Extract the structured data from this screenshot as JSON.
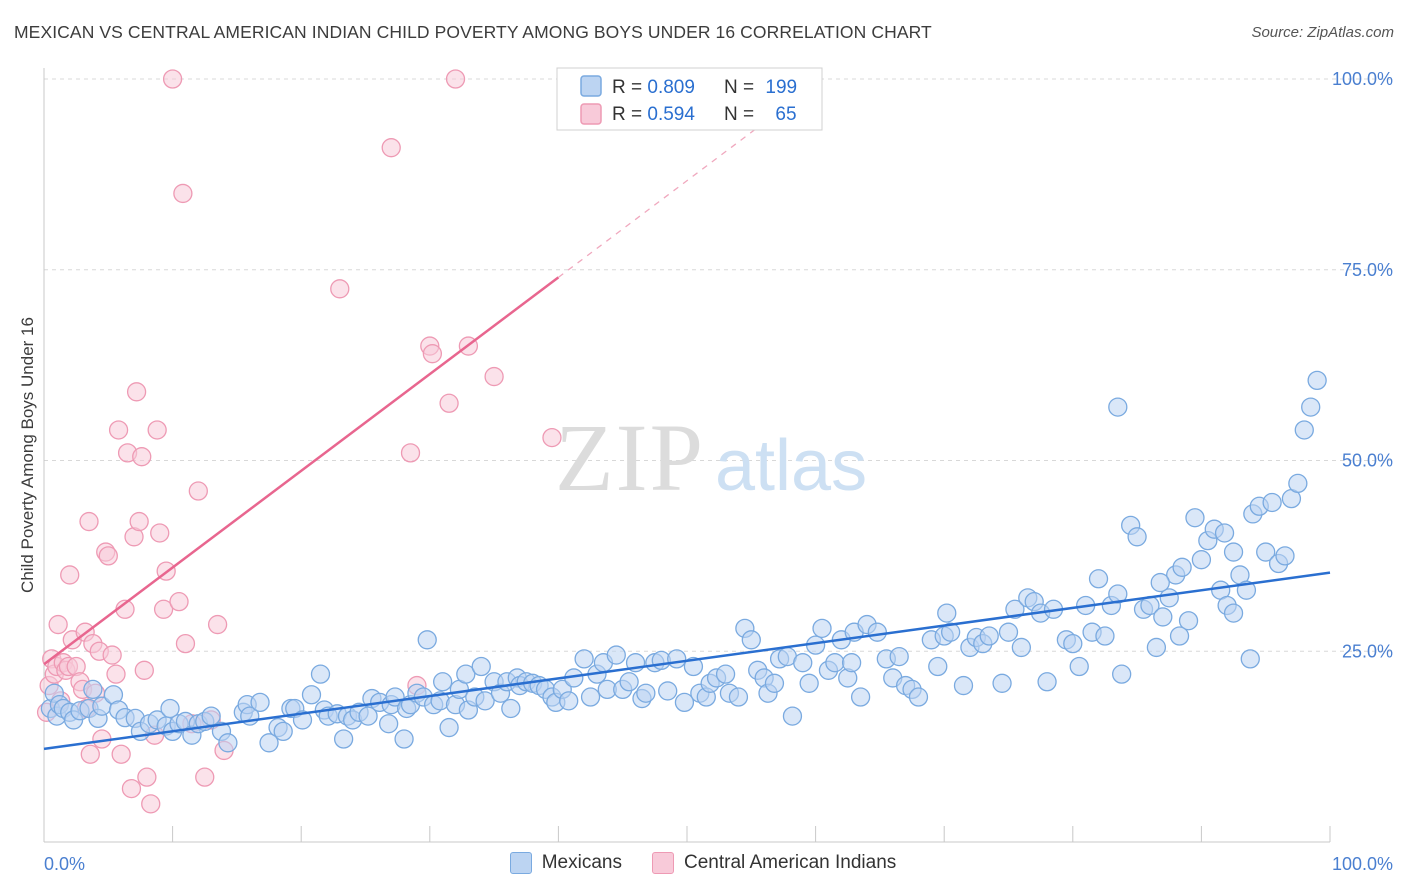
{
  "title": "MEXICAN VS CENTRAL AMERICAN INDIAN CHILD POVERTY AMONG BOYS UNDER 16 CORRELATION CHART",
  "source": "Source: ZipAtlas.com",
  "watermark": {
    "zip": "ZIP",
    "atlas": "atlas"
  },
  "colors": {
    "blue": "#7aaae0",
    "blue_fill": "#bcd4f2",
    "blue_line": "#2a6fd0",
    "pink": "#ee9ab4",
    "pink_fill": "#f8cad9",
    "pink_line": "#e8668f",
    "axis_text": "#4a7fd0",
    "grid": "#d8d8d8"
  },
  "legend": {
    "rows": [
      {
        "r_label": "R = ",
        "r_value": "0.809",
        "n_label": "N = ",
        "n_value": "199",
        "series": "blue"
      },
      {
        "r_label": "R = ",
        "r_value": "0.594",
        "n_label": "N = ",
        "n_value": "65",
        "series": "pink"
      }
    ]
  },
  "bottom_legend": [
    "Mexicans",
    "Central American Indians"
  ],
  "chart_data": {
    "type": "scatter",
    "title": "MEXICAN VS CENTRAL AMERICAN INDIAN CHILD POVERTY AMONG BOYS UNDER 16 CORRELATION CHART",
    "xlabel": "",
    "ylabel": "Child Poverty Among Boys Under 16",
    "xlim": [
      0,
      100
    ],
    "ylim": [
      0,
      100
    ],
    "x_tick_labels": [
      "0.0%",
      "100.0%"
    ],
    "y_tick_labels": [
      "25.0%",
      "50.0%",
      "75.0%",
      "100.0%"
    ],
    "y_ticks": [
      25,
      50,
      75,
      100
    ],
    "grid": true,
    "legend_position": "top-center",
    "series": [
      {
        "name": "Mexicans",
        "color": "#7aaae0",
        "r": 0.809,
        "n": 199,
        "trend": {
          "x": [
            0,
            100
          ],
          "y": [
            12.2,
            35.3
          ]
        },
        "points": [
          [
            0.5,
            17.5
          ],
          [
            0.8,
            19.5
          ],
          [
            1,
            16.5
          ],
          [
            1.2,
            18
          ],
          [
            1.5,
            17.5
          ],
          [
            2,
            17
          ],
          [
            2.3,
            16
          ],
          [
            2.8,
            17.2
          ],
          [
            3.5,
            17.5
          ],
          [
            3.8,
            20
          ],
          [
            4.2,
            16.2
          ],
          [
            4.5,
            17.8
          ],
          [
            5.4,
            19.3
          ],
          [
            5.8,
            17.3
          ],
          [
            6.3,
            16.3
          ],
          [
            7.1,
            16.2
          ],
          [
            7.5,
            14.5
          ],
          [
            8.2,
            15.5
          ],
          [
            8.8,
            16
          ],
          [
            9.5,
            15.2
          ],
          [
            9.8,
            17.5
          ],
          [
            10,
            14.5
          ],
          [
            10.5,
            15.5
          ],
          [
            11,
            15.8
          ],
          [
            11.5,
            14
          ],
          [
            12,
            15.5
          ],
          [
            12.5,
            15.8
          ],
          [
            13,
            16.5
          ],
          [
            13.8,
            14.5
          ],
          [
            14.3,
            13
          ],
          [
            15.5,
            17
          ],
          [
            15.8,
            18
          ],
          [
            16,
            16.5
          ],
          [
            16.8,
            18.3
          ],
          [
            17.5,
            13
          ],
          [
            18.2,
            15
          ],
          [
            18.6,
            14.5
          ],
          [
            19.2,
            17.5
          ],
          [
            19.5,
            17.5
          ],
          [
            20.1,
            16
          ],
          [
            20.8,
            19.3
          ],
          [
            21.5,
            22
          ],
          [
            21.8,
            17.3
          ],
          [
            22.1,
            16.5
          ],
          [
            22.8,
            16.8
          ],
          [
            23.3,
            13.5
          ],
          [
            23.6,
            16.5
          ],
          [
            24,
            16
          ],
          [
            24.5,
            17
          ],
          [
            25.2,
            16.5
          ],
          [
            25.5,
            18.8
          ],
          [
            26.1,
            18.3
          ],
          [
            26.8,
            15.5
          ],
          [
            27,
            18
          ],
          [
            27.3,
            19
          ],
          [
            28,
            13.5
          ],
          [
            28.2,
            17.5
          ],
          [
            28.5,
            18
          ],
          [
            29,
            19.5
          ],
          [
            29.5,
            19
          ],
          [
            29.8,
            26.5
          ],
          [
            30.3,
            18
          ],
          [
            30.8,
            18.5
          ],
          [
            31,
            21
          ],
          [
            31.5,
            15
          ],
          [
            32,
            18
          ],
          [
            32.3,
            20
          ],
          [
            32.8,
            22
          ],
          [
            33,
            17.3
          ],
          [
            33.5,
            19
          ],
          [
            34,
            23
          ],
          [
            34.3,
            18.5
          ],
          [
            35,
            21
          ],
          [
            35.5,
            19.5
          ],
          [
            36,
            21
          ],
          [
            36.3,
            17.5
          ],
          [
            36.8,
            21.5
          ],
          [
            37,
            20.5
          ],
          [
            37.5,
            21
          ],
          [
            38,
            20.8
          ],
          [
            38.5,
            20.5
          ],
          [
            39,
            20
          ],
          [
            39.5,
            19
          ],
          [
            39.8,
            18.3
          ],
          [
            40.3,
            20
          ],
          [
            40.8,
            18.5
          ],
          [
            41.2,
            21.5
          ],
          [
            42,
            24
          ],
          [
            42.5,
            19
          ],
          [
            43,
            22
          ],
          [
            43.5,
            23.5
          ],
          [
            43.8,
            20
          ],
          [
            44.5,
            24.5
          ],
          [
            45,
            20
          ],
          [
            45.5,
            21
          ],
          [
            46,
            23.5
          ],
          [
            46.5,
            18.8
          ],
          [
            46.8,
            19.5
          ],
          [
            47.5,
            23.5
          ],
          [
            48,
            23.8
          ],
          [
            48.5,
            19.8
          ],
          [
            49.2,
            24
          ],
          [
            49.8,
            18.3
          ],
          [
            50.5,
            23
          ],
          [
            51,
            19.5
          ],
          [
            51.5,
            19
          ],
          [
            51.8,
            20.8
          ],
          [
            52.3,
            21.5
          ],
          [
            53,
            22
          ],
          [
            53.3,
            19.5
          ],
          [
            54,
            19
          ],
          [
            54.5,
            28
          ],
          [
            55,
            26.5
          ],
          [
            55.5,
            22.5
          ],
          [
            56,
            21.5
          ],
          [
            56.3,
            19.5
          ],
          [
            56.8,
            20.8
          ],
          [
            57.2,
            24
          ],
          [
            57.8,
            24.3
          ],
          [
            58.2,
            16.5
          ],
          [
            59,
            23.5
          ],
          [
            59.5,
            20.8
          ],
          [
            60,
            25.8
          ],
          [
            60.5,
            28
          ],
          [
            61,
            22.5
          ],
          [
            61.5,
            23.5
          ],
          [
            62,
            26.5
          ],
          [
            62.5,
            21.5
          ],
          [
            62.8,
            23.5
          ],
          [
            63,
            27.5
          ],
          [
            63.5,
            19
          ],
          [
            64,
            28.5
          ],
          [
            64.8,
            27.5
          ],
          [
            65.5,
            24
          ],
          [
            66,
            21.5
          ],
          [
            66.5,
            24.3
          ],
          [
            67,
            20.5
          ],
          [
            67.5,
            20
          ],
          [
            68,
            19
          ],
          [
            69,
            26.5
          ],
          [
            69.5,
            23
          ],
          [
            70,
            27
          ],
          [
            70.2,
            30
          ],
          [
            70.5,
            27.5
          ],
          [
            71.5,
            20.5
          ],
          [
            72,
            25.5
          ],
          [
            72.5,
            26.8
          ],
          [
            73,
            26
          ],
          [
            73.5,
            27
          ],
          [
            74.5,
            20.8
          ],
          [
            75,
            27.5
          ],
          [
            75.5,
            30.5
          ],
          [
            76,
            25.5
          ],
          [
            76.5,
            32
          ],
          [
            77,
            31.5
          ],
          [
            77.5,
            30
          ],
          [
            78,
            21
          ],
          [
            78.5,
            30.5
          ],
          [
            79.5,
            26.5
          ],
          [
            80,
            26
          ],
          [
            80.5,
            23
          ],
          [
            81,
            31
          ],
          [
            81.5,
            27.5
          ],
          [
            82,
            34.5
          ],
          [
            82.5,
            27
          ],
          [
            83,
            31
          ],
          [
            83.5,
            32.5
          ],
          [
            83.8,
            22
          ],
          [
            84.5,
            41.5
          ],
          [
            85,
            40
          ],
          [
            85.5,
            30.5
          ],
          [
            86,
            31
          ],
          [
            86.5,
            25.5
          ],
          [
            87,
            29.5
          ],
          [
            87.5,
            32
          ],
          [
            88,
            35
          ],
          [
            88.5,
            36
          ],
          [
            89,
            29
          ],
          [
            89.5,
            42.5
          ],
          [
            90,
            37
          ],
          [
            90.5,
            39.5
          ],
          [
            91,
            41
          ],
          [
            91.5,
            33
          ],
          [
            92,
            31
          ],
          [
            92.5,
            38
          ],
          [
            93,
            35
          ],
          [
            93.5,
            33
          ],
          [
            94,
            43
          ],
          [
            94.5,
            44
          ],
          [
            95,
            38
          ],
          [
            95.5,
            44.5
          ],
          [
            96,
            36.5
          ],
          [
            96.5,
            37.5
          ],
          [
            97,
            45
          ],
          [
            97.5,
            47
          ],
          [
            98,
            54
          ],
          [
            98.5,
            57
          ],
          [
            99,
            60.5
          ],
          [
            83.5,
            57
          ],
          [
            91.8,
            40.5
          ],
          [
            93.8,
            24
          ],
          [
            92.5,
            30
          ],
          [
            88.3,
            27
          ],
          [
            86.8,
            34
          ]
        ]
      },
      {
        "name": "Central American Indians",
        "color": "#ee9ab4",
        "r": 0.594,
        "n": 65,
        "trend": {
          "x": [
            0,
            40
          ],
          "y": [
            23.3,
            74.0
          ],
          "dash_to": [
            100,
            143
          ]
        },
        "points": [
          [
            0.2,
            17
          ],
          [
            0.4,
            20.5
          ],
          [
            0.6,
            24
          ],
          [
            0.8,
            22
          ],
          [
            1,
            23
          ],
          [
            1.3,
            18.5
          ],
          [
            1.5,
            23.5
          ],
          [
            1.7,
            22.5
          ],
          [
            1.9,
            23
          ],
          [
            2,
            35
          ],
          [
            2.2,
            26.5
          ],
          [
            2.5,
            23
          ],
          [
            2.8,
            21
          ],
          [
            3,
            20
          ],
          [
            3.2,
            27.5
          ],
          [
            3.3,
            17.5
          ],
          [
            3.5,
            42
          ],
          [
            3.8,
            26
          ],
          [
            4,
            19.5
          ],
          [
            4.3,
            25
          ],
          [
            4.5,
            13.5
          ],
          [
            4.8,
            38
          ],
          [
            5,
            37.5
          ],
          [
            5.3,
            24.5
          ],
          [
            5.6,
            22
          ],
          [
            5.8,
            54
          ],
          [
            6,
            11.5
          ],
          [
            6.3,
            30.5
          ],
          [
            6.5,
            51
          ],
          [
            6.8,
            7
          ],
          [
            7,
            40
          ],
          [
            7.2,
            59
          ],
          [
            7.4,
            42
          ],
          [
            7.6,
            50.5
          ],
          [
            7.8,
            22.5
          ],
          [
            8,
            8.5
          ],
          [
            8.3,
            5
          ],
          [
            8.6,
            14
          ],
          [
            8.8,
            54
          ],
          [
            9,
            40.5
          ],
          [
            9.3,
            30.5
          ],
          [
            9.5,
            35.5
          ],
          [
            10,
            100
          ],
          [
            10.5,
            31.5
          ],
          [
            10.8,
            85
          ],
          [
            11,
            26
          ],
          [
            11.5,
            15.5
          ],
          [
            12,
            46
          ],
          [
            12.5,
            8.5
          ],
          [
            13,
            16
          ],
          [
            13.5,
            28.5
          ],
          [
            14,
            12
          ],
          [
            23,
            72.5
          ],
          [
            27,
            91
          ],
          [
            28.5,
            51
          ],
          [
            29,
            20.5
          ],
          [
            30,
            65
          ],
          [
            30.2,
            64
          ],
          [
            31.5,
            57.5
          ],
          [
            32,
            100
          ],
          [
            33,
            65
          ],
          [
            35,
            61
          ],
          [
            39.5,
            53
          ],
          [
            3.6,
            11.5
          ],
          [
            1.1,
            28.5
          ]
        ]
      }
    ]
  }
}
